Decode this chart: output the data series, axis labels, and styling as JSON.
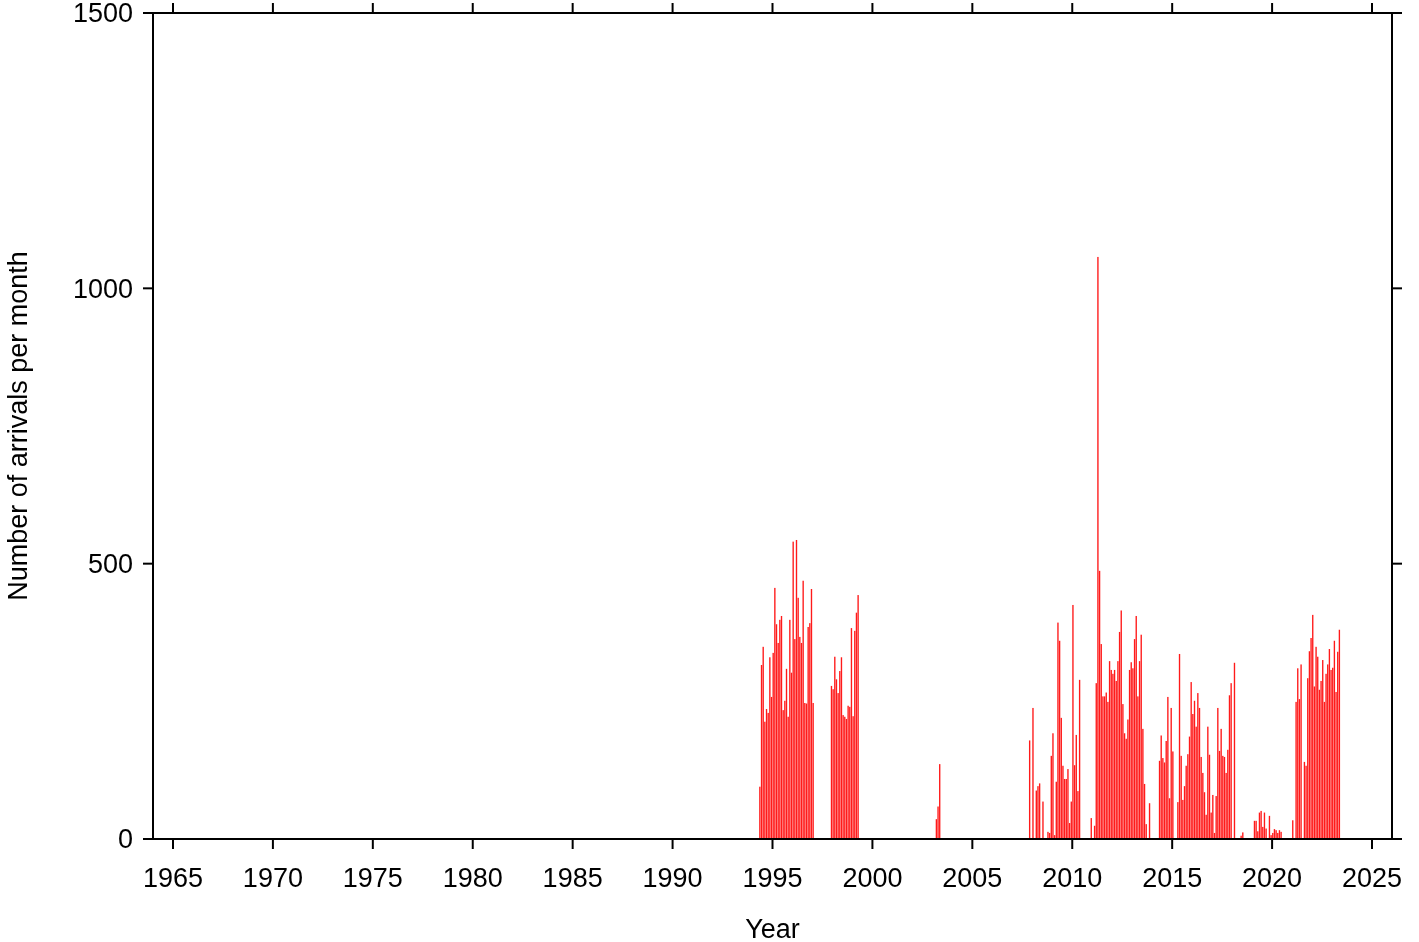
{
  "chart_data": {
    "type": "bar",
    "xlabel": "Year",
    "ylabel": "Number of arrivals per month",
    "color": "#ff1a1a",
    "xlim": [
      "1964-01",
      "2026-01"
    ],
    "ylim": [
      0,
      1500
    ],
    "xticks": [
      {
        "value": "1965",
        "label": "1965"
      },
      {
        "value": "1970",
        "label": "1970"
      },
      {
        "value": "1975",
        "label": "1975"
      },
      {
        "value": "1980",
        "label": "1980"
      },
      {
        "value": "1985",
        "label": "1985"
      },
      {
        "value": "1990",
        "label": "1990"
      },
      {
        "value": "1995",
        "label": "1995"
      },
      {
        "value": "2000",
        "label": "2000"
      },
      {
        "value": "2005",
        "label": "2005"
      },
      {
        "value": "2010",
        "label": "2010"
      },
      {
        "value": "2015",
        "label": "2015"
      },
      {
        "value": "2020",
        "label": "2020"
      },
      {
        "value": "2025",
        "label": "2025"
      }
    ],
    "yticks": [
      0,
      500,
      1000,
      1500
    ],
    "x": [
      "1994-05",
      "1994-06",
      "1994-07",
      "1994-08",
      "1994-09",
      "1994-10",
      "1994-11",
      "1994-12",
      "1995-01",
      "1995-02",
      "1995-03",
      "1995-04",
      "1995-05",
      "1995-06",
      "1995-07",
      "1995-08",
      "1995-09",
      "1995-10",
      "1995-11",
      "1995-12",
      "1996-01",
      "1996-02",
      "1996-03",
      "1996-04",
      "1996-05",
      "1996-06",
      "1996-07",
      "1996-08",
      "1996-09",
      "1996-10",
      "1996-11",
      "1996-12",
      "1997-01",
      "1997-12",
      "1998-01",
      "1998-02",
      "1998-03",
      "1998-04",
      "1998-05",
      "1998-06",
      "1998-07",
      "1998-08",
      "1998-09",
      "1998-10",
      "1998-11",
      "1998-12",
      "1999-01",
      "1999-02",
      "1999-03",
      "1999-04",
      "2003-03",
      "2003-04",
      "2003-05",
      "2007-11",
      "2008-01",
      "2008-03",
      "2008-04",
      "2008-05",
      "2008-07",
      "2008-10",
      "2008-11",
      "2008-12",
      "2009-01",
      "2009-02",
      "2009-03",
      "2009-04",
      "2009-05",
      "2009-06",
      "2009-07",
      "2009-08",
      "2009-09",
      "2009-10",
      "2009-11",
      "2009-12",
      "2010-01",
      "2010-02",
      "2010-03",
      "2010-04",
      "2010-05",
      "2010-12",
      "2011-02",
      "2011-03",
      "2011-04",
      "2011-05",
      "2011-06",
      "2011-07",
      "2011-08",
      "2011-09",
      "2011-10",
      "2011-11",
      "2011-12",
      "2012-01",
      "2012-02",
      "2012-03",
      "2012-04",
      "2012-05",
      "2012-06",
      "2012-07",
      "2012-08",
      "2012-09",
      "2012-10",
      "2012-11",
      "2012-12",
      "2013-01",
      "2013-02",
      "2013-03",
      "2013-04",
      "2013-05",
      "2013-06",
      "2013-07",
      "2013-08",
      "2013-09",
      "2013-11",
      "2014-05",
      "2014-06",
      "2014-07",
      "2014-08",
      "2014-09",
      "2014-10",
      "2014-11",
      "2014-12",
      "2015-01",
      "2015-04",
      "2015-05",
      "2015-06",
      "2015-07",
      "2015-08",
      "2015-09",
      "2015-10",
      "2015-11",
      "2015-12",
      "2016-01",
      "2016-02",
      "2016-03",
      "2016-04",
      "2016-05",
      "2016-06",
      "2016-07",
      "2016-08",
      "2016-09",
      "2016-10",
      "2016-11",
      "2016-12",
      "2017-01",
      "2017-02",
      "2017-03",
      "2017-04",
      "2017-05",
      "2017-06",
      "2017-07",
      "2017-08",
      "2017-09",
      "2017-10",
      "2017-11",
      "2017-12",
      "2018-02",
      "2018-06",
      "2018-07",
      "2019-02",
      "2019-03",
      "2019-04",
      "2019-05",
      "2019-06",
      "2019-07",
      "2019-08",
      "2019-09",
      "2019-11",
      "2019-12",
      "2020-01",
      "2020-02",
      "2020-03",
      "2020-04",
      "2020-05",
      "2020-06",
      "2021-01",
      "2021-03",
      "2021-04",
      "2021-05",
      "2021-06",
      "2021-08",
      "2021-09",
      "2021-10",
      "2021-11",
      "2021-12",
      "2022-01",
      "2022-02",
      "2022-03",
      "2022-04",
      "2022-05",
      "2022-06",
      "2022-07",
      "2022-08",
      "2022-09",
      "2022-10",
      "2022-11",
      "2022-12",
      "2023-01",
      "2023-02",
      "2023-03",
      "2023-04",
      "2023-05"
    ],
    "values": [
      95,
      316,
      349,
      213,
      236,
      229,
      330,
      258,
      338,
      456,
      390,
      356,
      398,
      405,
      234,
      251,
      309,
      222,
      398,
      302,
      540,
      363,
      543,
      438,
      367,
      356,
      469,
      247,
      246,
      385,
      392,
      454,
      247,
      278,
      272,
      331,
      290,
      265,
      305,
      330,
      225,
      222,
      218,
      242,
      240,
      383,
      223,
      378,
      411,
      443,
      36,
      59,
      136,
      179,
      238,
      88,
      96,
      101,
      68,
      13,
      11,
      151,
      192,
      7,
      104,
      393,
      360,
      220,
      133,
      109,
      109,
      127,
      29,
      68,
      425,
      134,
      189,
      87,
      289,
      38,
      24,
      283,
      1057,
      487,
      354,
      259,
      259,
      266,
      249,
      323,
      307,
      300,
      307,
      287,
      323,
      376,
      415,
      245,
      192,
      182,
      217,
      307,
      321,
      310,
      363,
      405,
      259,
      323,
      371,
      200,
      100,
      27,
      65,
      142,
      188,
      147,
      139,
      178,
      258,
      74,
      238,
      159,
      67,
      336,
      151,
      71,
      96,
      133,
      154,
      186,
      285,
      227,
      251,
      204,
      265,
      238,
      149,
      120,
      85,
      44,
      204,
      153,
      48,
      80,
      11,
      78,
      238,
      160,
      200,
      151,
      149,
      120,
      162,
      261,
      283,
      320,
      6,
      12,
      33,
      33,
      14,
      48,
      51,
      22,
      48,
      19,
      42,
      7,
      11,
      18,
      16,
      11,
      16,
      13,
      34,
      249,
      310,
      254,
      317,
      140,
      133,
      292,
      341,
      365,
      407,
      277,
      349,
      331,
      271,
      287,
      325,
      249,
      300,
      317,
      345,
      307,
      311,
      360,
      267,
      340,
      380
    ]
  }
}
